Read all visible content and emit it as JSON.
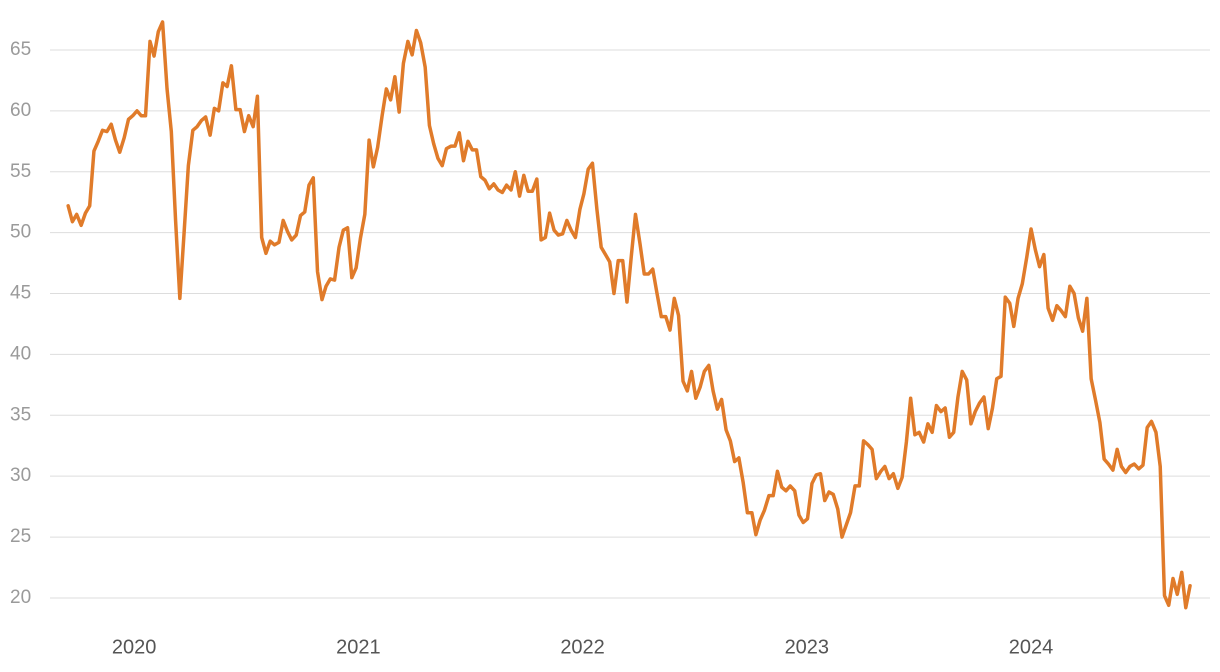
{
  "chart_data": {
    "type": "line",
    "x": [
      2019.706,
      2019.725,
      2019.744,
      2019.764,
      2019.783,
      2019.802,
      2019.821,
      2019.84,
      2019.859,
      2019.879,
      2019.898,
      2019.917,
      2019.936,
      2019.956,
      2019.975,
      2019.994,
      2020.013,
      2020.032,
      2020.051,
      2020.071,
      2020.089,
      2020.108,
      2020.127,
      2020.147,
      2020.166,
      2020.185,
      2020.204,
      2020.223,
      2020.242,
      2020.262,
      2020.281,
      2020.3,
      2020.319,
      2020.339,
      2020.358,
      2020.377,
      2020.396,
      2020.415,
      2020.434,
      2020.454,
      2020.473,
      2020.492,
      2020.511,
      2020.531,
      2020.55,
      2020.569,
      2020.588,
      2020.607,
      2020.626,
      2020.646,
      2020.665,
      2020.684,
      2020.703,
      2020.723,
      2020.742,
      2020.761,
      2020.78,
      2020.799,
      2020.818,
      2020.838,
      2020.856,
      2020.875,
      2020.894,
      2020.914,
      2020.933,
      2020.952,
      2020.971,
      2020.99,
      2021.009,
      2021.029,
      2021.048,
      2021.067,
      2021.086,
      2021.106,
      2021.125,
      2021.144,
      2021.163,
      2021.182,
      2021.201,
      2021.221,
      2021.24,
      2021.259,
      2021.278,
      2021.298,
      2021.317,
      2021.336,
      2021.355,
      2021.374,
      2021.393,
      2021.413,
      2021.431,
      2021.45,
      2021.469,
      2021.489,
      2021.508,
      2021.527,
      2021.546,
      2021.565,
      2021.584,
      2021.604,
      2021.623,
      2021.642,
      2021.661,
      2021.681,
      2021.7,
      2021.719,
      2021.738,
      2021.757,
      2021.776,
      2021.796,
      2021.815,
      2021.834,
      2021.853,
      2021.873,
      2021.892,
      2021.911,
      2021.93,
      2021.949,
      2021.968,
      2021.988,
      2022.006,
      2022.025,
      2022.044,
      2022.064,
      2022.083,
      2022.102,
      2022.121,
      2022.14,
      2022.159,
      2022.179,
      2022.198,
      2022.217,
      2022.236,
      2022.256,
      2022.275,
      2022.294,
      2022.313,
      2022.332,
      2022.351,
      2022.371,
      2022.39,
      2022.409,
      2022.428,
      2022.448,
      2022.467,
      2022.486,
      2022.505,
      2022.524,
      2022.543,
      2022.563,
      2022.582,
      2022.601,
      2022.62,
      2022.64,
      2022.659,
      2022.678,
      2022.697,
      2022.716,
      2022.735,
      2022.755,
      2022.773,
      2022.792,
      2022.811,
      2022.831,
      2022.85,
      2022.869,
      2022.888,
      2022.907,
      2022.926,
      2022.946,
      2022.965,
      2022.984,
      2023.003,
      2023.023,
      2023.042,
      2023.061,
      2023.08,
      2023.099,
      2023.118,
      2023.138,
      2023.157,
      2023.176,
      2023.195,
      2023.215,
      2023.234,
      2023.253,
      2023.272,
      2023.291,
      2023.31,
      2023.33,
      2023.348,
      2023.367,
      2023.386,
      2023.406,
      2023.425,
      2023.444,
      2023.463,
      2023.482,
      2023.501,
      2023.521,
      2023.54,
      2023.559,
      2023.578,
      2023.598,
      2023.617,
      2023.636,
      2023.655,
      2023.674,
      2023.693,
      2023.713,
      2023.732,
      2023.751,
      2023.77,
      2023.79,
      2023.809,
      2023.828,
      2023.847,
      2023.866,
      2023.885,
      2023.905,
      2023.923,
      2023.942,
      2023.961,
      2023.981,
      2024.0,
      2024.019,
      2024.038,
      2024.057,
      2024.076,
      2024.096,
      2024.115,
      2024.134,
      2024.153,
      2024.173,
      2024.192,
      2024.211,
      2024.23,
      2024.249,
      2024.268,
      2024.288,
      2024.307,
      2024.326,
      2024.345,
      2024.365,
      2024.384,
      2024.403,
      2024.422,
      2024.441,
      2024.46,
      2024.48,
      2024.499,
      2024.518,
      2024.537,
      2024.557,
      2024.576,
      2024.595,
      2024.614,
      2024.633,
      2024.652,
      2024.672,
      2024.69,
      2024.709
    ],
    "series": [
      {
        "color": "#e07b2a",
        "values": [
          52.2,
          50.9,
          51.5,
          50.6,
          51.6,
          52.2,
          56.7,
          57.5,
          58.4,
          58.3,
          58.9,
          57.6,
          56.6,
          57.8,
          59.3,
          59.6,
          60.0,
          59.6,
          59.6,
          65.7,
          64.5,
          66.5,
          67.3,
          61.8,
          58.3,
          51.0,
          44.6,
          50.0,
          55.5,
          58.4,
          58.7,
          59.2,
          59.5,
          58.0,
          60.2,
          60.0,
          62.3,
          62.0,
          63.7,
          60.1,
          60.1,
          58.3,
          59.6,
          58.7,
          61.2,
          49.6,
          48.3,
          49.3,
          49.0,
          49.2,
          51.0,
          50.1,
          49.4,
          49.8,
          51.4,
          51.7,
          53.9,
          54.5,
          46.8,
          44.5,
          45.6,
          46.2,
          46.1,
          48.8,
          50.2,
          50.4,
          46.3,
          47.1,
          49.5,
          51.5,
          57.6,
          55.4,
          57.0,
          59.6,
          61.8,
          60.9,
          62.8,
          59.9,
          63.9,
          65.7,
          64.6,
          66.6,
          65.6,
          63.6,
          58.8,
          57.3,
          56.1,
          55.5,
          56.9,
          57.1,
          57.1,
          58.2,
          55.9,
          57.5,
          56.8,
          56.8,
          54.6,
          54.3,
          53.6,
          54.0,
          53.5,
          53.3,
          53.9,
          53.5,
          55.0,
          53.0,
          54.7,
          53.4,
          53.4,
          54.4,
          49.4,
          49.6,
          51.6,
          50.2,
          49.8,
          49.9,
          51.0,
          50.2,
          49.6,
          51.9,
          53.2,
          55.2,
          55.7,
          51.9,
          48.8,
          48.2,
          47.6,
          45.0,
          47.7,
          47.7,
          44.3,
          48.0,
          51.5,
          49.1,
          46.6,
          46.6,
          47.0,
          45.0,
          43.1,
          43.1,
          42.0,
          44.6,
          43.2,
          37.8,
          37.0,
          38.6,
          36.4,
          37.3,
          38.6,
          39.1,
          37.0,
          35.5,
          36.3,
          33.8,
          32.9,
          31.2,
          31.5,
          29.5,
          27.0,
          27.0,
          25.2,
          26.4,
          27.2,
          28.4,
          28.4,
          30.4,
          29.1,
          28.8,
          29.2,
          28.8,
          26.8,
          26.2,
          26.5,
          29.4,
          30.1,
          30.2,
          28.0,
          28.7,
          28.5,
          27.3,
          25.0,
          26.0,
          27.0,
          29.2,
          29.2,
          32.9,
          32.6,
          32.2,
          29.8,
          30.4,
          30.8,
          29.8,
          30.2,
          29.0,
          29.9,
          32.8,
          36.4,
          33.4,
          33.6,
          32.8,
          34.3,
          33.6,
          35.8,
          35.3,
          35.6,
          33.2,
          33.6,
          36.5,
          38.6,
          37.9,
          34.3,
          35.3,
          36.0,
          36.5,
          33.9,
          35.6,
          38.0,
          38.2,
          44.7,
          44.2,
          42.3,
          44.6,
          45.8,
          48.0,
          50.3,
          48.6,
          47.2,
          48.2,
          43.8,
          42.8,
          44.0,
          43.6,
          43.1,
          45.6,
          45.0,
          43.0,
          41.9,
          44.6,
          38.0,
          36.2,
          34.4,
          31.4,
          31.0,
          30.5,
          32.2,
          30.8,
          30.3,
          30.8,
          31.0,
          30.6,
          30.9,
          34.0,
          34.5,
          33.6,
          30.8,
          20.2,
          19.4,
          21.6,
          20.3,
          22.1,
          19.2,
          21.0
        ]
      }
    ],
    "xlim": [
      2019.625,
      2024.798
    ],
    "xticks": [
      2020,
      2021,
      2022,
      2023,
      2024
    ],
    "ylim": [
      18.19,
      67.46
    ],
    "yticks": [
      20,
      25,
      30,
      35,
      40,
      45,
      50,
      55,
      60,
      65
    ],
    "grid": true
  }
}
